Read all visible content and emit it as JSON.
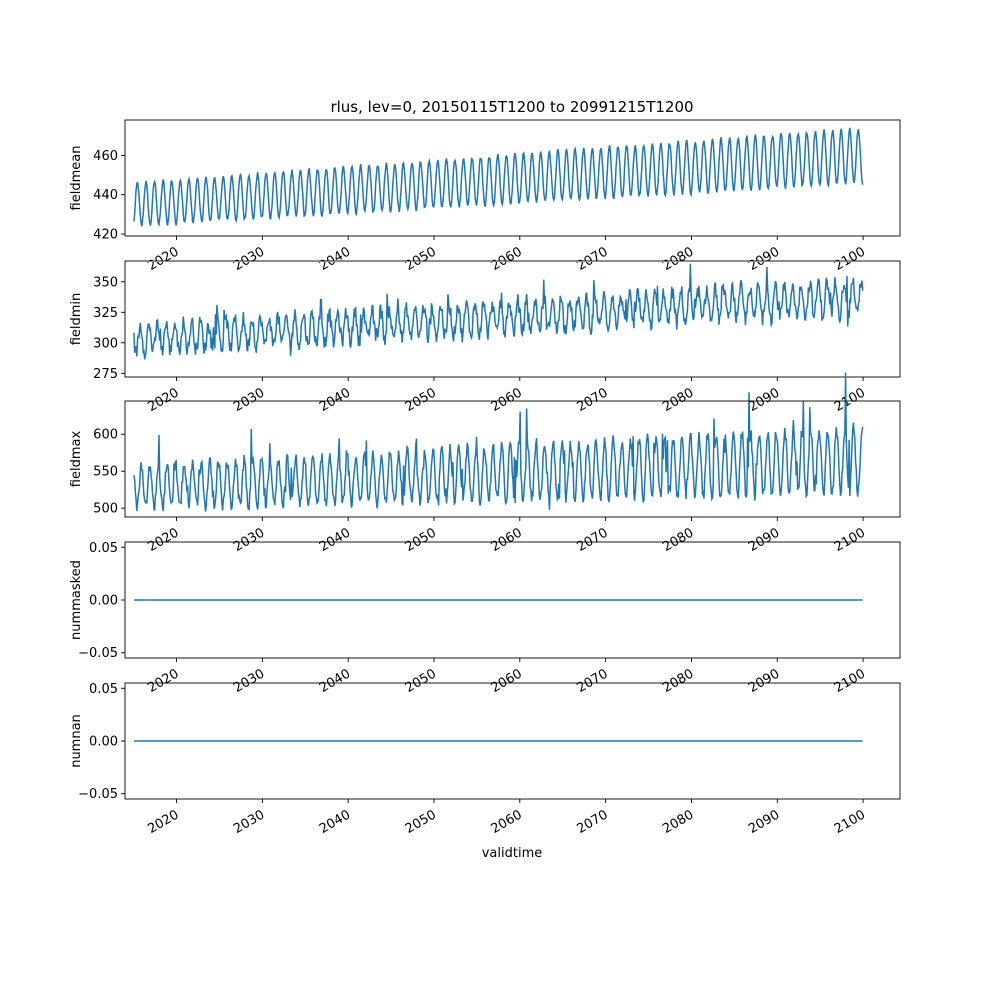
{
  "chart_data": {
    "type": "line",
    "title": "rlus, lev=0, 20150115T1200 to 20991215T1200",
    "xlabel": "validtime",
    "x_start": "2015-01",
    "x_end": "2099-12",
    "xlim": [
      2014.0,
      2104.3
    ],
    "x_ticks": [
      "2020",
      "2030",
      "2040",
      "2050",
      "2060",
      "2070",
      "2080",
      "2090",
      "2100"
    ],
    "color": "#1f77b4",
    "grid": false,
    "panels": [
      {
        "ylabel": "fieldmean",
        "ylim": [
          419,
          478
        ],
        "y_ticks": [
          "420",
          "440",
          "460"
        ],
        "series": {
          "base_start": 435,
          "base_end": 460,
          "amp_start": 11,
          "amp_end": 14,
          "phase": 0.15,
          "noise": 1
        }
      },
      {
        "ylabel": "fieldmin",
        "ylim": [
          272,
          367
        ],
        "y_ticks": [
          "275",
          "300",
          "325",
          "350"
        ],
        "series": {
          "base_start": 303,
          "base_end": 338,
          "amp_start": 11,
          "amp_end": 14,
          "phase": 0.5,
          "noise": 6,
          "spikes": true
        }
      },
      {
        "ylabel": "fieldmax",
        "ylim": [
          488,
          645
        ],
        "y_ticks": [
          "500",
          "550",
          "600"
        ],
        "series": {
          "base_start": 528,
          "base_end": 565,
          "amp_start": 28,
          "amp_end": 45,
          "phase": 0.6,
          "noise": 8,
          "spikes": true
        }
      },
      {
        "ylabel": "nummasked",
        "ylim": [
          -0.055,
          0.055
        ],
        "y_ticks": [
          "−0.05",
          "0.00",
          "0.05"
        ],
        "series": {
          "constant": 0
        }
      },
      {
        "ylabel": "numnan",
        "ylim": [
          -0.055,
          0.055
        ],
        "y_ticks": [
          "−0.05",
          "0.00",
          "0.05"
        ],
        "series": {
          "constant": 0
        }
      }
    ]
  }
}
